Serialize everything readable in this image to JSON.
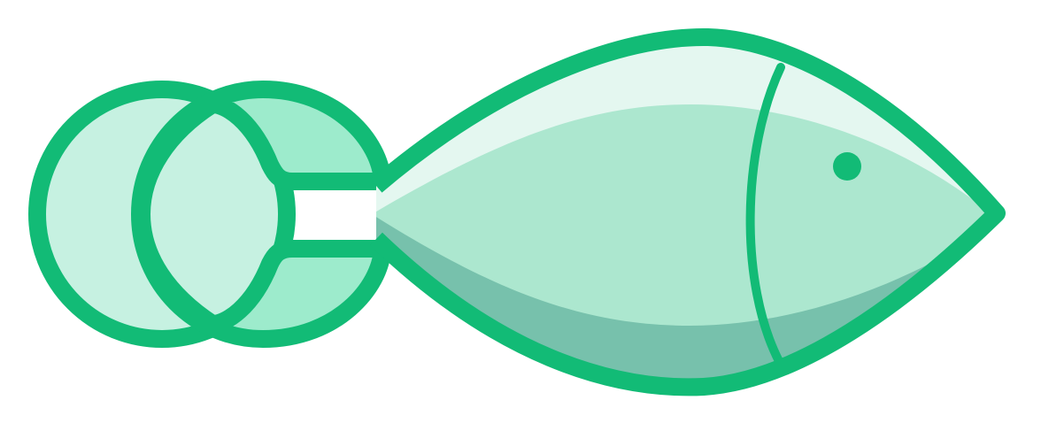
{
  "colors": {
    "stroke": "#12bb76",
    "circle_back_fill": "#c6f1e1",
    "circle_front_fill": "#9debcc",
    "body_top_highlight": "#e4f7f0",
    "body_mid": "#ace7cf",
    "body_bottom_shadow": "#77c1ac",
    "eye": "#12bb76",
    "background": "#ffffff"
  },
  "icon": {
    "name": "fish-logo-icon"
  }
}
